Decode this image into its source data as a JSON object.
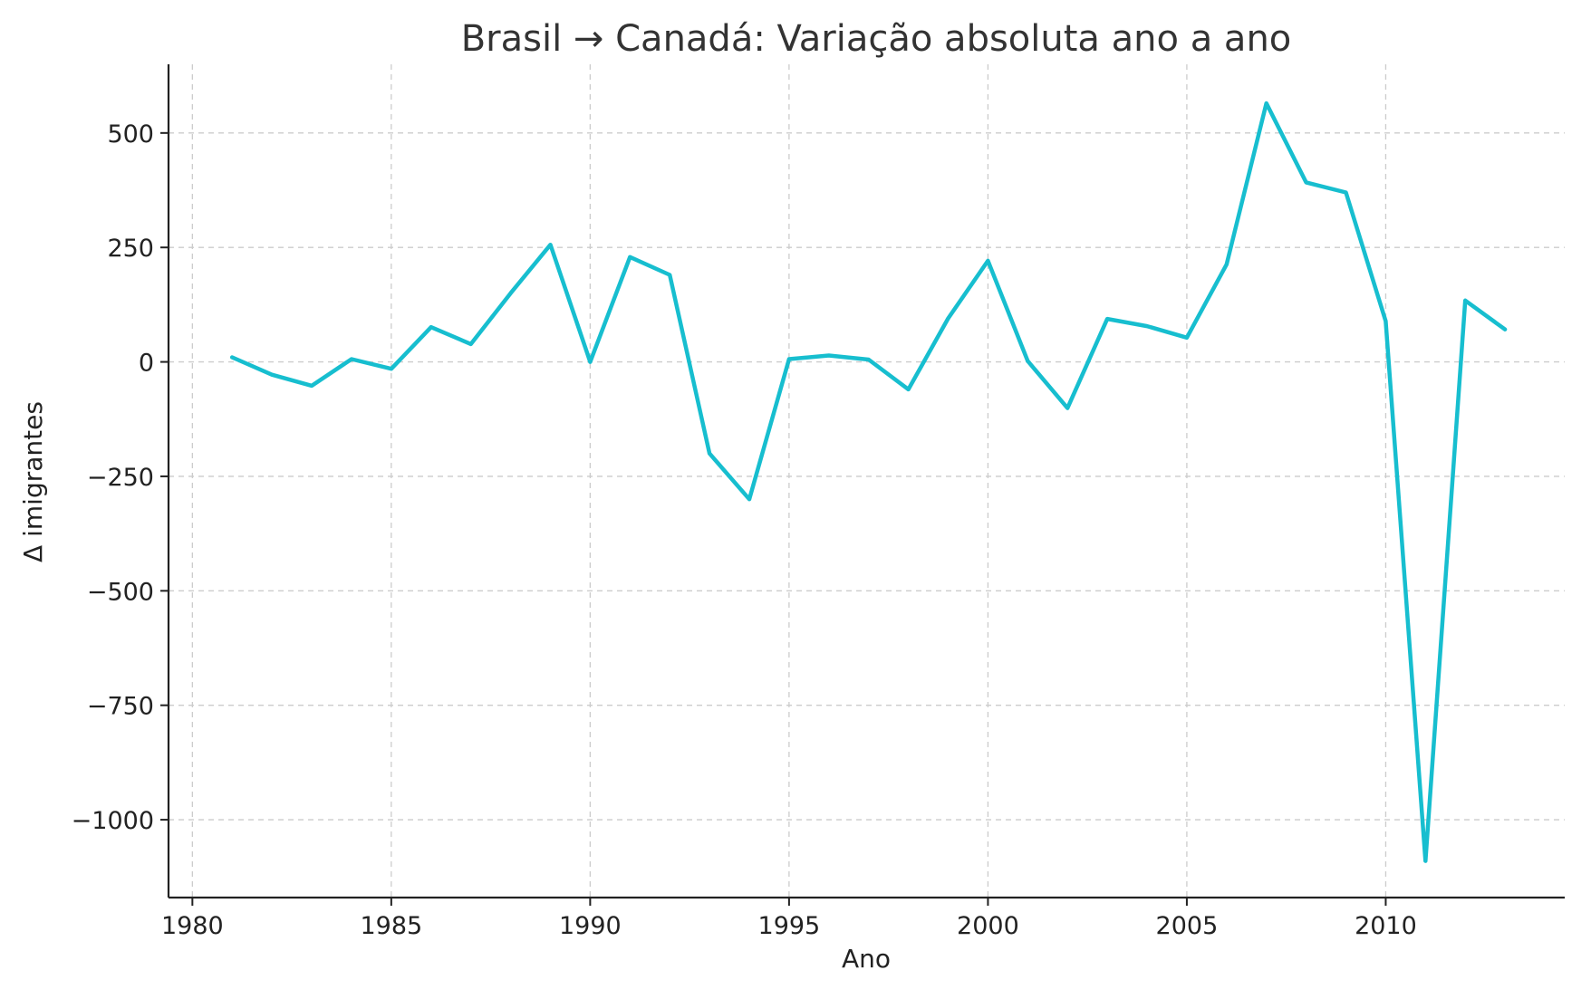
{
  "chart_data": {
    "type": "line",
    "title": "Brasil → Canadá: Variação absoluta ano a ano",
    "xlabel": "Ano",
    "ylabel": "Δ imigrantes",
    "xlim": [
      1979.4,
      2014.5
    ],
    "ylim": [
      -1170,
      650
    ],
    "xticks": [
      1980,
      1985,
      1990,
      1995,
      2000,
      2005,
      2010
    ],
    "yticks": [
      500,
      250,
      0,
      -250,
      -500,
      -750,
      -1000
    ],
    "xtick_labels": [
      "1980",
      "1985",
      "1990",
      "1995",
      "2000",
      "2005",
      "2010"
    ],
    "ytick_labels": [
      "500",
      "250",
      "0",
      "−250",
      "−500",
      "−750",
      "−1000"
    ],
    "grid": true,
    "color": "#17becf",
    "x": [
      1981,
      1982,
      1983,
      1984,
      1985,
      1986,
      1987,
      1988,
      1989,
      1990,
      1991,
      1992,
      1993,
      1994,
      1995,
      1996,
      1997,
      1998,
      1999,
      2000,
      2001,
      2002,
      2003,
      2004,
      2005,
      2006,
      2007,
      2008,
      2009,
      2010,
      2011,
      2012,
      2013
    ],
    "values": [
      10,
      -28,
      -52,
      6,
      -15,
      76,
      39,
      150,
      256,
      0,
      229,
      190,
      -200,
      -300,
      6,
      14,
      5,
      -60,
      95,
      221,
      2,
      -101,
      94,
      78,
      53,
      213,
      565,
      392,
      370,
      89,
      -1090,
      134,
      71
    ]
  }
}
